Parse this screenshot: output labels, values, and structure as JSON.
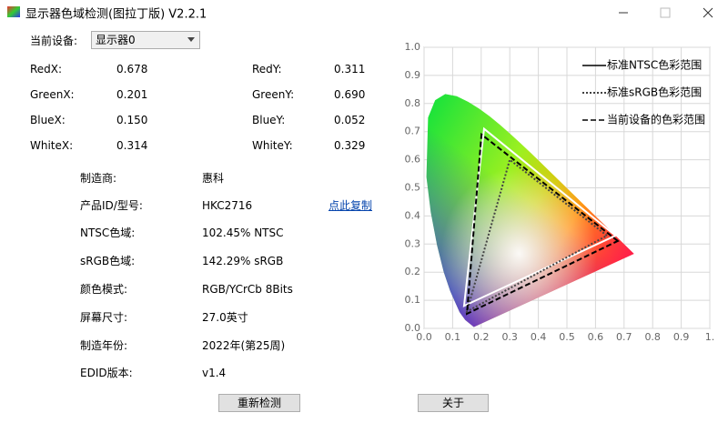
{
  "window": {
    "title": "显示器色域检测(图拉丁版) V2.2.1"
  },
  "device": {
    "label": "当前设备:",
    "selected": "显示器0"
  },
  "readings": [
    {
      "label": "RedX:",
      "value": "0.678"
    },
    {
      "label": "RedY:",
      "value": "0.311"
    },
    {
      "label": "GreenX:",
      "value": "0.201"
    },
    {
      "label": "GreenY:",
      "value": "0.690"
    },
    {
      "label": "BlueX:",
      "value": "0.150"
    },
    {
      "label": "BlueY:",
      "value": "0.052"
    },
    {
      "label": "WhiteX:",
      "value": "0.314"
    },
    {
      "label": "WhiteY:",
      "value": "0.329"
    }
  ],
  "info": [
    {
      "label": "制造商:",
      "value": "惠科"
    },
    {
      "label": "产品ID/型号:",
      "value": "HKC2716"
    },
    {
      "label": "NTSC色域:",
      "value": "102.45% NTSC"
    },
    {
      "label": "sRGB色域:",
      "value": "142.29% sRGB"
    },
    {
      "label": "颜色模式:",
      "value": "RGB/YCrCb 8Bits"
    },
    {
      "label": "屏幕尺寸:",
      "value": "27.0英寸"
    },
    {
      "label": "制造年份:",
      "value": "2022年(第25周)"
    },
    {
      "label": "EDID版本:",
      "value": "v1.4"
    }
  ],
  "copy_link": "点此复制",
  "buttons": [
    "重新检测",
    "关于"
  ],
  "chart_data": {
    "type": "line",
    "xlim": [
      0,
      1
    ],
    "ylim": [
      0,
      1
    ],
    "xticks": [
      {
        "value": 0,
        "label": "0.0"
      },
      {
        "value": 0.1,
        "label": "0.1"
      },
      {
        "value": 0.2,
        "label": "0.2"
      },
      {
        "value": 0.3,
        "label": "0.3"
      },
      {
        "value": 0.4,
        "label": "0.4"
      },
      {
        "value": 0.5,
        "label": "0.5"
      },
      {
        "value": 0.6,
        "label": "0.6"
      },
      {
        "value": 0.7,
        "label": "0.7"
      },
      {
        "value": 0.8,
        "label": "0.8"
      },
      {
        "value": 0.9,
        "label": "0.9"
      },
      {
        "value": 1,
        "label": "1."
      }
    ],
    "yticks": [
      {
        "value": 0,
        "label": "0.0"
      },
      {
        "value": 0.1,
        "label": "0.1"
      },
      {
        "value": 0.2,
        "label": "0.2"
      },
      {
        "value": 0.3,
        "label": "0.3"
      },
      {
        "value": 0.4,
        "label": "0.4"
      },
      {
        "value": 0.5,
        "label": "0.5"
      },
      {
        "value": 0.6,
        "label": "0.6"
      },
      {
        "value": 0.7,
        "label": "0.7"
      },
      {
        "value": 0.8,
        "label": "0.8"
      },
      {
        "value": 0.9,
        "label": "0.9"
      },
      {
        "value": 1,
        "label": "1.0"
      }
    ],
    "grid": true,
    "series": [
      {
        "name": "标准NTSC色彩范围",
        "color": "#ffffff",
        "dash": "solid",
        "x": [
          0.67,
          0.21,
          0.14
        ],
        "values": [
          0.33,
          0.71,
          0.08
        ]
      },
      {
        "name": "标准sRGB色彩范围",
        "color": "#444444",
        "dash": "dotted",
        "x": [
          0.64,
          0.3,
          0.15
        ],
        "values": [
          0.33,
          0.6,
          0.06
        ]
      },
      {
        "name": "当前设备的色彩范围",
        "color": "#000000",
        "dash": "dashed",
        "x": [
          0.678,
          0.201,
          0.15
        ],
        "values": [
          0.311,
          0.69,
          0.052
        ]
      }
    ]
  }
}
